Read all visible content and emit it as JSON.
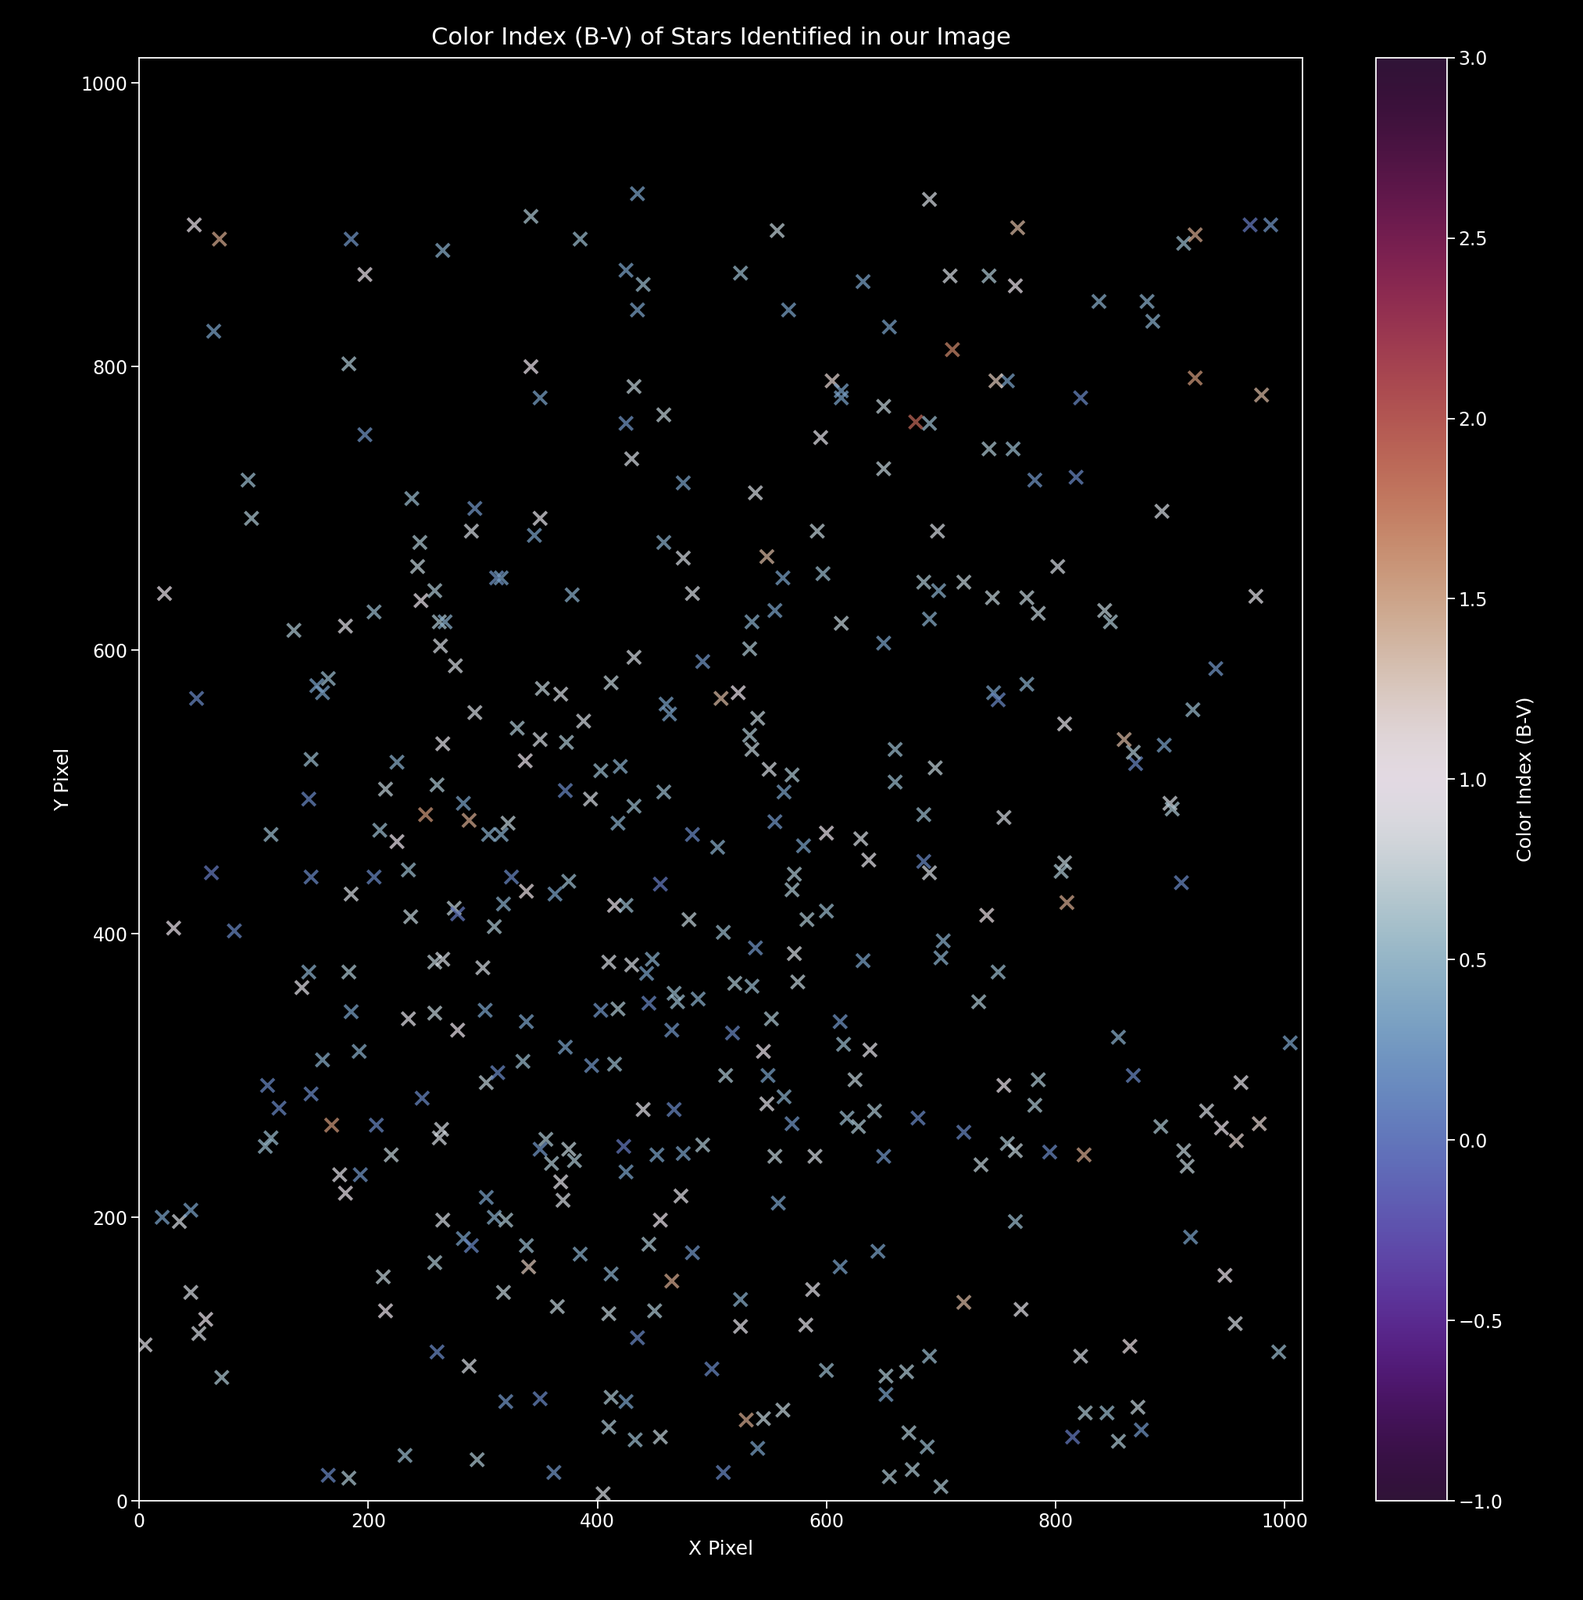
{
  "chart_data": {
    "type": "scatter",
    "title": "Color Index (B-V) of Stars Identified in our Image",
    "x_label": "X Pixel",
    "y_label": "Y Pixel",
    "marker": "x",
    "xlim": [
      0,
      1016
    ],
    "ylim": [
      0,
      1018
    ],
    "xticks": [
      0,
      200,
      400,
      600,
      800,
      1000
    ],
    "yticks": [
      0,
      200,
      400,
      600,
      800,
      1000
    ],
    "colorbar": {
      "label": "Color Index (B-V)",
      "range": [
        -1,
        3
      ],
      "ticks": [
        {
          "value": -1,
          "label": "−1.0"
        },
        {
          "value": -0.5,
          "label": "−0.5"
        },
        {
          "value": 0,
          "label": "0.0"
        },
        {
          "value": 0.5,
          "label": "0.5"
        },
        {
          "value": 1,
          "label": "1.0"
        },
        {
          "value": 1.5,
          "label": "1.5"
        },
        {
          "value": 2,
          "label": "2.0"
        },
        {
          "value": 2.5,
          "label": "2.5"
        },
        {
          "value": 3,
          "label": "3.0"
        }
      ]
    },
    "x": [
      48,
      70,
      185,
      197,
      65,
      183,
      265,
      342,
      385,
      435,
      425,
      440,
      435,
      432,
      342,
      350,
      525,
      557,
      567,
      605,
      613,
      613,
      632,
      655,
      650,
      690,
      708,
      710,
      742,
      758,
      767,
      765,
      748,
      822,
      838,
      880,
      885,
      912,
      922,
      922,
      970,
      988,
      980,
      197,
      95,
      98,
      22,
      135,
      180,
      205,
      238,
      245,
      246,
      243,
      258,
      262,
      267,
      263,
      276,
      290,
      293,
      312,
      316,
      345,
      350,
      378,
      425,
      430,
      432,
      458,
      458,
      475,
      475,
      483,
      492,
      538,
      548,
      535,
      555,
      562,
      533,
      595,
      592,
      597,
      613,
      650,
      650,
      678,
      690,
      697,
      685,
      690,
      698,
      720,
      745,
      742,
      763,
      782,
      818,
      775,
      785,
      802,
      843,
      848,
      893,
      975,
      50,
      150,
      148,
      150,
      155,
      165,
      160,
      63,
      83,
      30,
      115,
      185,
      210,
      205,
      215,
      225,
      225,
      235,
      237,
      250,
      260,
      265,
      275,
      278,
      283,
      288,
      293,
      305,
      316,
      318,
      322,
      325,
      330,
      337,
      338,
      350,
      352,
      363,
      368,
      373,
      372,
      375,
      388,
      394,
      403,
      412,
      415,
      420,
      418,
      425,
      432,
      455,
      458,
      460,
      463,
      480,
      483,
      505,
      510,
      523,
      508,
      535,
      533,
      540,
      550,
      555,
      563,
      570,
      572,
      570,
      580,
      583,
      600,
      600,
      630,
      637,
      660,
      660,
      685,
      685,
      690,
      695,
      702,
      746,
      750,
      755,
      775,
      740,
      808,
      808,
      810,
      805,
      870,
      868,
      895,
      900,
      902,
      910,
      920,
      940,
      860,
      148,
      142,
      160,
      183,
      185,
      192,
      112,
      122,
      150,
      168,
      110,
      115,
      175,
      180,
      193,
      207,
      220,
      235,
      247,
      258,
      258,
      265,
      264,
      262,
      278,
      300,
      302,
      303,
      313,
      335,
      338,
      303,
      310,
      355,
      350,
      360,
      368,
      370,
      372,
      375,
      380,
      395,
      403,
      410,
      415,
      418,
      423,
      425,
      430,
      440,
      443,
      445,
      448,
      452,
      465,
      467,
      467,
      470,
      475,
      473,
      488,
      492,
      512,
      518,
      520,
      535,
      538,
      545,
      548,
      549,
      552,
      555,
      563,
      570,
      572,
      575,
      590,
      612,
      615,
      618,
      625,
      628,
      632,
      638,
      642,
      650,
      680,
      700,
      720,
      733,
      735,
      750,
      755,
      758,
      765,
      785,
      782,
      795,
      855,
      868,
      892,
      912,
      915,
      932,
      945,
      958,
      962,
      978,
      1005,
      825,
      20,
      35,
      45,
      5,
      45,
      52,
      58,
      72,
      165,
      183,
      213,
      215,
      232,
      258,
      260,
      265,
      283,
      290,
      288,
      295,
      318,
      320,
      310,
      320,
      338,
      340,
      350,
      362,
      365,
      385,
      405,
      410,
      412,
      410,
      412,
      425,
      433,
      435,
      445,
      450,
      455,
      455,
      465,
      483,
      500,
      510,
      525,
      525,
      530,
      540,
      545,
      558,
      562,
      582,
      588,
      600,
      612,
      645,
      652,
      652,
      655,
      670,
      672,
      675,
      688,
      690,
      700,
      720,
      765,
      770,
      815,
      822,
      826,
      845,
      855,
      865,
      872,
      875,
      918,
      948,
      957,
      995
    ],
    "y": [
      900,
      890,
      890,
      865,
      825,
      802,
      882,
      906,
      890,
      922,
      868,
      858,
      840,
      786,
      800,
      778,
      866,
      896,
      840,
      790,
      783,
      778,
      860,
      828,
      772,
      918,
      864,
      812,
      864,
      790,
      898,
      857,
      790,
      778,
      846,
      846,
      832,
      887,
      893,
      792,
      900,
      900,
      780,
      752,
      720,
      693,
      640,
      614,
      617,
      627,
      707,
      676,
      635,
      659,
      642,
      620,
      620,
      603,
      589,
      684,
      700,
      651,
      651,
      681,
      693,
      639,
      760,
      735,
      595,
      676,
      766,
      718,
      665,
      640,
      592,
      711,
      666,
      620,
      628,
      651,
      601,
      750,
      684,
      654,
      619,
      605,
      728,
      761,
      760,
      684,
      648,
      622,
      642,
      648,
      637,
      742,
      742,
      720,
      722,
      637,
      626,
      659,
      628,
      620,
      698,
      638,
      566,
      523,
      495,
      440,
      575,
      580,
      570,
      443,
      402,
      404,
      470,
      428,
      473,
      440,
      502,
      465,
      521,
      445,
      412,
      484,
      505,
      534,
      418,
      414,
      492,
      480,
      556,
      470,
      470,
      421,
      478,
      440,
      545,
      522,
      430,
      537,
      573,
      428,
      569,
      535,
      501,
      437,
      550,
      495,
      515,
      577,
      420,
      518,
      478,
      420,
      490,
      435,
      500,
      562,
      555,
      410,
      470,
      461,
      401,
      570,
      566,
      530,
      540,
      552,
      516,
      479,
      500,
      512,
      442,
      431,
      462,
      410,
      471,
      416,
      467,
      452,
      530,
      507,
      484,
      451,
      443,
      517,
      395,
      570,
      565,
      482,
      576,
      413,
      548,
      450,
      422,
      444,
      520,
      528,
      533,
      492,
      488,
      436,
      558,
      587,
      537,
      373,
      362,
      311,
      373,
      345,
      317,
      293,
      277,
      287,
      265,
      250,
      256,
      230,
      217,
      230,
      265,
      244,
      340,
      284,
      344,
      380,
      382,
      262,
      256,
      332,
      376,
      346,
      295,
      302,
      310,
      338,
      214,
      405,
      255,
      248,
      238,
      225,
      212,
      320,
      248,
      240,
      307,
      346,
      380,
      308,
      347,
      250,
      232,
      378,
      276,
      372,
      351,
      382,
      244,
      332,
      276,
      358,
      352,
      245,
      215,
      354,
      251,
      300,
      330,
      365,
      363,
      390,
      317,
      280,
      300,
      340,
      243,
      285,
      266,
      386,
      366,
      243,
      338,
      322,
      270,
      297,
      264,
      381,
      318,
      275,
      243,
      270,
      383,
      260,
      352,
      237,
      373,
      293,
      252,
      247,
      297,
      279,
      246,
      327,
      300,
      264,
      247,
      236,
      275,
      263,
      254,
      295,
      266,
      323,
      244,
      200,
      197,
      205,
      110,
      147,
      118,
      128,
      87,
      18,
      16,
      158,
      134,
      32,
      168,
      105,
      198,
      185,
      180,
      95,
      29,
      147,
      70,
      200,
      198,
      180,
      165,
      72,
      20,
      137,
      174,
      5,
      52,
      160,
      132,
      73,
      70,
      43,
      115,
      181,
      134,
      45,
      198,
      155,
      175,
      93,
      20,
      142,
      123,
      57,
      37,
      58,
      210,
      64,
      124,
      149,
      92,
      165,
      176,
      88,
      75,
      17,
      91,
      48,
      22,
      38,
      102,
      10,
      140,
      197,
      135,
      45,
      102,
      62,
      62,
      42,
      109,
      66,
      50,
      186,
      159,
      125,
      105
    ],
    "color_index": [
      1.0,
      1.5,
      0.2,
      1.0,
      0.3,
      0.6,
      0.4,
      0.6,
      0.5,
      0.3,
      0.3,
      0.5,
      0.3,
      0.7,
      1.0,
      0.3,
      0.5,
      0.7,
      0.3,
      1.2,
      0.3,
      0.3,
      0.3,
      0.3,
      0.7,
      0.8,
      0.8,
      1.7,
      0.6,
      0.3,
      1.4,
      1.0,
      1.3,
      0.1,
      0.4,
      0.4,
      0.4,
      0.5,
      1.5,
      1.6,
      0.0,
      0.2,
      1.4,
      0.2,
      0.5,
      0.6,
      1.0,
      0.6,
      0.9,
      0.5,
      0.5,
      0.6,
      1.0,
      0.7,
      0.6,
      0.6,
      0.4,
      0.8,
      0.8,
      0.8,
      0.2,
      0.2,
      0.3,
      0.3,
      0.9,
      0.4,
      0.2,
      0.8,
      0.8,
      0.4,
      0.7,
      0.3,
      0.8,
      0.8,
      0.2,
      0.8,
      1.4,
      0.4,
      0.3,
      0.3,
      0.6,
      0.9,
      0.7,
      0.5,
      0.7,
      0.3,
      0.7,
      1.9,
      0.5,
      0.8,
      0.6,
      0.4,
      0.4,
      0.7,
      0.7,
      0.6,
      0.5,
      0.2,
      0.1,
      0.7,
      0.7,
      0.8,
      0.7,
      0.6,
      0.8,
      0.9,
      0.1,
      0.5,
      0.1,
      0.1,
      0.3,
      0.5,
      0.3,
      0.0,
      0.1,
      1.0,
      0.5,
      0.8,
      0.5,
      0.1,
      0.7,
      1.0,
      0.4,
      0.5,
      0.7,
      1.6,
      0.6,
      0.9,
      0.7,
      0.0,
      0.3,
      1.5,
      0.8,
      0.4,
      0.4,
      0.4,
      0.7,
      0.1,
      0.6,
      1.0,
      1.1,
      0.8,
      0.7,
      0.3,
      0.8,
      0.6,
      0.1,
      0.5,
      0.8,
      0.8,
      0.5,
      0.7,
      1.0,
      0.4,
      0.4,
      0.5,
      0.5,
      0.0,
      0.5,
      0.3,
      0.3,
      0.7,
      0.1,
      0.4,
      0.5,
      1.0,
      1.4,
      0.7,
      0.6,
      0.7,
      0.8,
      0.2,
      0.3,
      0.6,
      0.6,
      0.6,
      0.3,
      0.6,
      1.0,
      0.5,
      0.8,
      0.9,
      0.5,
      0.5,
      0.5,
      0.1,
      0.8,
      0.7,
      0.4,
      0.3,
      0.1,
      0.8,
      0.4,
      1.1,
      0.9,
      0.7,
      1.5,
      0.6,
      0.1,
      0.6,
      0.3,
      0.8,
      0.6,
      0.1,
      0.5,
      0.2,
      1.4,
      0.4,
      0.9,
      0.4,
      0.6,
      0.3,
      0.4,
      0.1,
      0.1,
      0.1,
      1.6,
      0.5,
      0.5,
      0.9,
      1.0,
      0.2,
      0.1,
      0.7,
      0.9,
      0.1,
      0.7,
      0.7,
      0.8,
      0.8,
      0.8,
      1.0,
      0.8,
      0.3,
      0.7,
      0.1,
      0.5,
      0.3,
      0.3,
      0.6,
      0.6,
      0.2,
      0.6,
      0.9,
      0.8,
      0.3,
      0.7,
      0.6,
      0.2,
      0.2,
      0.8,
      0.5,
      0.6,
      0.0,
      0.3,
      0.8,
      0.9,
      0.3,
      0.1,
      0.4,
      0.3,
      0.2,
      0.1,
      0.5,
      0.5,
      0.3,
      0.9,
      0.4,
      0.6,
      0.6,
      0.1,
      0.6,
      0.5,
      0.2,
      1.0,
      0.9,
      0.3,
      0.6,
      0.7,
      0.4,
      0.2,
      0.8,
      0.7,
      0.8,
      0.2,
      0.5,
      0.5,
      0.7,
      0.6,
      0.3,
      0.9,
      0.6,
      0.2,
      0.1,
      0.4,
      0.1,
      0.6,
      0.7,
      0.5,
      1.0,
      0.6,
      0.7,
      0.6,
      0.6,
      0.1,
      0.4,
      0.1,
      0.6,
      0.7,
      0.7,
      0.8,
      1.0,
      1.2,
      0.9,
      1.2,
      0.3,
      1.5,
      0.3,
      0.8,
      0.3,
      0.9,
      0.8,
      0.8,
      1.0,
      0.6,
      0.1,
      0.6,
      0.7,
      1.0,
      0.5,
      0.6,
      0.1,
      0.8,
      0.3,
      0.1,
      0.8,
      0.6,
      0.7,
      0.2,
      0.4,
      0.6,
      0.5,
      1.3,
      0.1,
      0.2,
      0.7,
      0.4,
      0.8,
      0.6,
      0.4,
      0.7,
      0.6,
      0.3,
      0.5,
      0.1,
      0.6,
      0.6,
      0.7,
      1.0,
      1.5,
      0.2,
      0.1,
      0.1,
      0.4,
      0.9,
      1.5,
      0.3,
      0.7,
      0.3,
      0.7,
      0.9,
      0.9,
      0.5,
      0.3,
      0.3,
      0.6,
      0.3,
      0.6,
      0.6,
      0.6,
      0.6,
      0.5,
      0.5,
      0.6,
      1.4,
      0.5,
      0.9,
      0.0,
      0.8,
      0.6,
      0.5,
      0.6,
      1.1,
      0.7,
      0.2,
      0.3,
      1.0,
      0.8,
      0.5
    ]
  }
}
